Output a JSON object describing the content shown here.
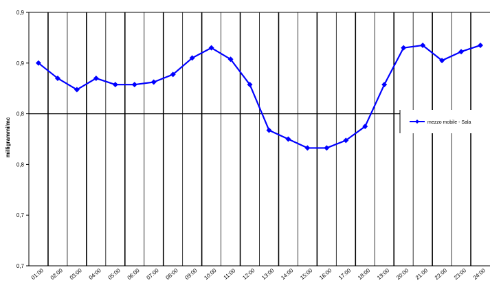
{
  "chart_data": {
    "type": "line",
    "title": "",
    "xlabel": "",
    "ylabel": "milligrammi/mc",
    "ylim": [
      0.7,
      0.9
    ],
    "yticks": [
      "0,7",
      "0,7",
      "0,8",
      "0,8",
      "0,9",
      "0,9"
    ],
    "categories": [
      "01:00",
      "02:00",
      "03:00",
      "04:00",
      "05:00",
      "06:00",
      "07:00",
      "08:00",
      "09:00",
      "10:00",
      "11:00",
      "12:00",
      "13:00",
      "14:00",
      "15:00",
      "16:00",
      "17:00",
      "18:00",
      "19:00",
      "20:00",
      "21:00",
      "22:00",
      "23:00",
      "24:00"
    ],
    "series": [
      {
        "name": "mezzo mobile - Sala",
        "color": "#0000ff",
        "values": [
          0.86,
          0.848,
          0.839,
          0.848,
          0.843,
          0.843,
          0.845,
          0.851,
          0.864,
          0.872,
          0.863,
          0.843,
          0.807,
          0.8,
          0.793,
          0.793,
          0.799,
          0.81,
          0.843,
          0.872,
          0.874,
          0.862,
          0.869,
          0.874
        ]
      }
    ],
    "grid": "vertical major lines; horizontal line at 0,9",
    "legend": "right"
  }
}
